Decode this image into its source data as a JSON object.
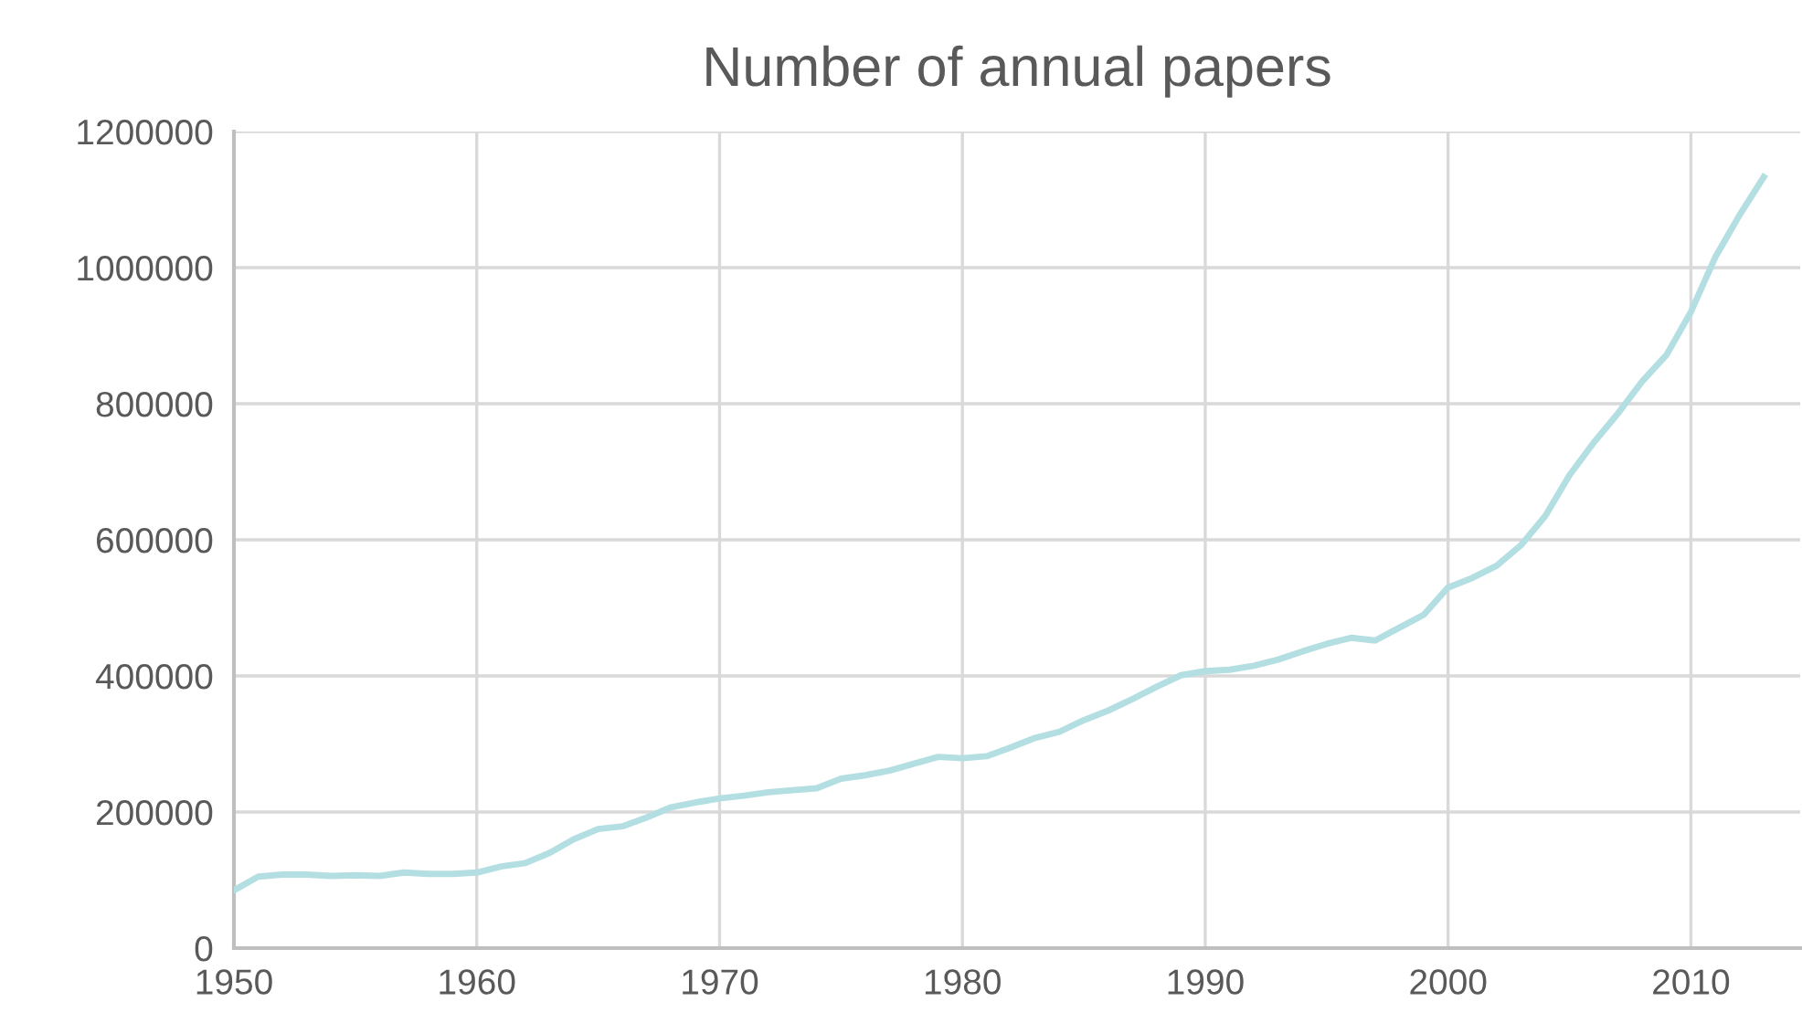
{
  "chart_data": {
    "type": "line",
    "title": "Number of annual papers",
    "x": [
      1950,
      1951,
      1952,
      1953,
      1954,
      1955,
      1956,
      1957,
      1958,
      1959,
      1960,
      1961,
      1962,
      1963,
      1964,
      1965,
      1966,
      1967,
      1968,
      1969,
      1970,
      1971,
      1972,
      1973,
      1974,
      1975,
      1976,
      1977,
      1978,
      1979,
      1980,
      1981,
      1982,
      1983,
      1984,
      1985,
      1986,
      1987,
      1988,
      1989,
      1990,
      1991,
      1992,
      1993,
      1994,
      1995,
      1996,
      1997,
      1998,
      1999,
      2000,
      2001,
      2002,
      2003,
      2004,
      2005,
      2006,
      2007,
      2008,
      2009,
      2010,
      2011,
      2012,
      2013
    ],
    "series": [
      {
        "color": "#b4dfe2",
        "values": [
          85000,
          105000,
          108000,
          108000,
          106000,
          107000,
          106000,
          111000,
          109000,
          109000,
          111000,
          120000,
          125000,
          140000,
          160000,
          175000,
          179000,
          192000,
          207000,
          214000,
          220000,
          224000,
          229000,
          232000,
          235000,
          249000,
          254000,
          261000,
          271000,
          281000,
          279000,
          282000,
          295000,
          309000,
          318000,
          335000,
          349000,
          366000,
          384000,
          401000,
          407000,
          409000,
          415000,
          424000,
          436000,
          447000,
          456000,
          452000,
          471000,
          490000,
          530000,
          544000,
          562000,
          592000,
          635000,
          695000,
          743000,
          786000,
          833000,
          872000,
          935000,
          1015000,
          1077000,
          1133000
        ]
      }
    ],
    "xlim": [
      1950,
      2014.5
    ],
    "xticks": [
      1950,
      1960,
      1970,
      1980,
      1990,
      2000,
      2010
    ],
    "ylim": [
      0,
      1200000
    ],
    "yticks": [
      0,
      200000,
      400000,
      600000,
      800000,
      1000000,
      1200000
    ],
    "grid": true,
    "legend": false,
    "marker": "none",
    "line_style": "solid"
  }
}
